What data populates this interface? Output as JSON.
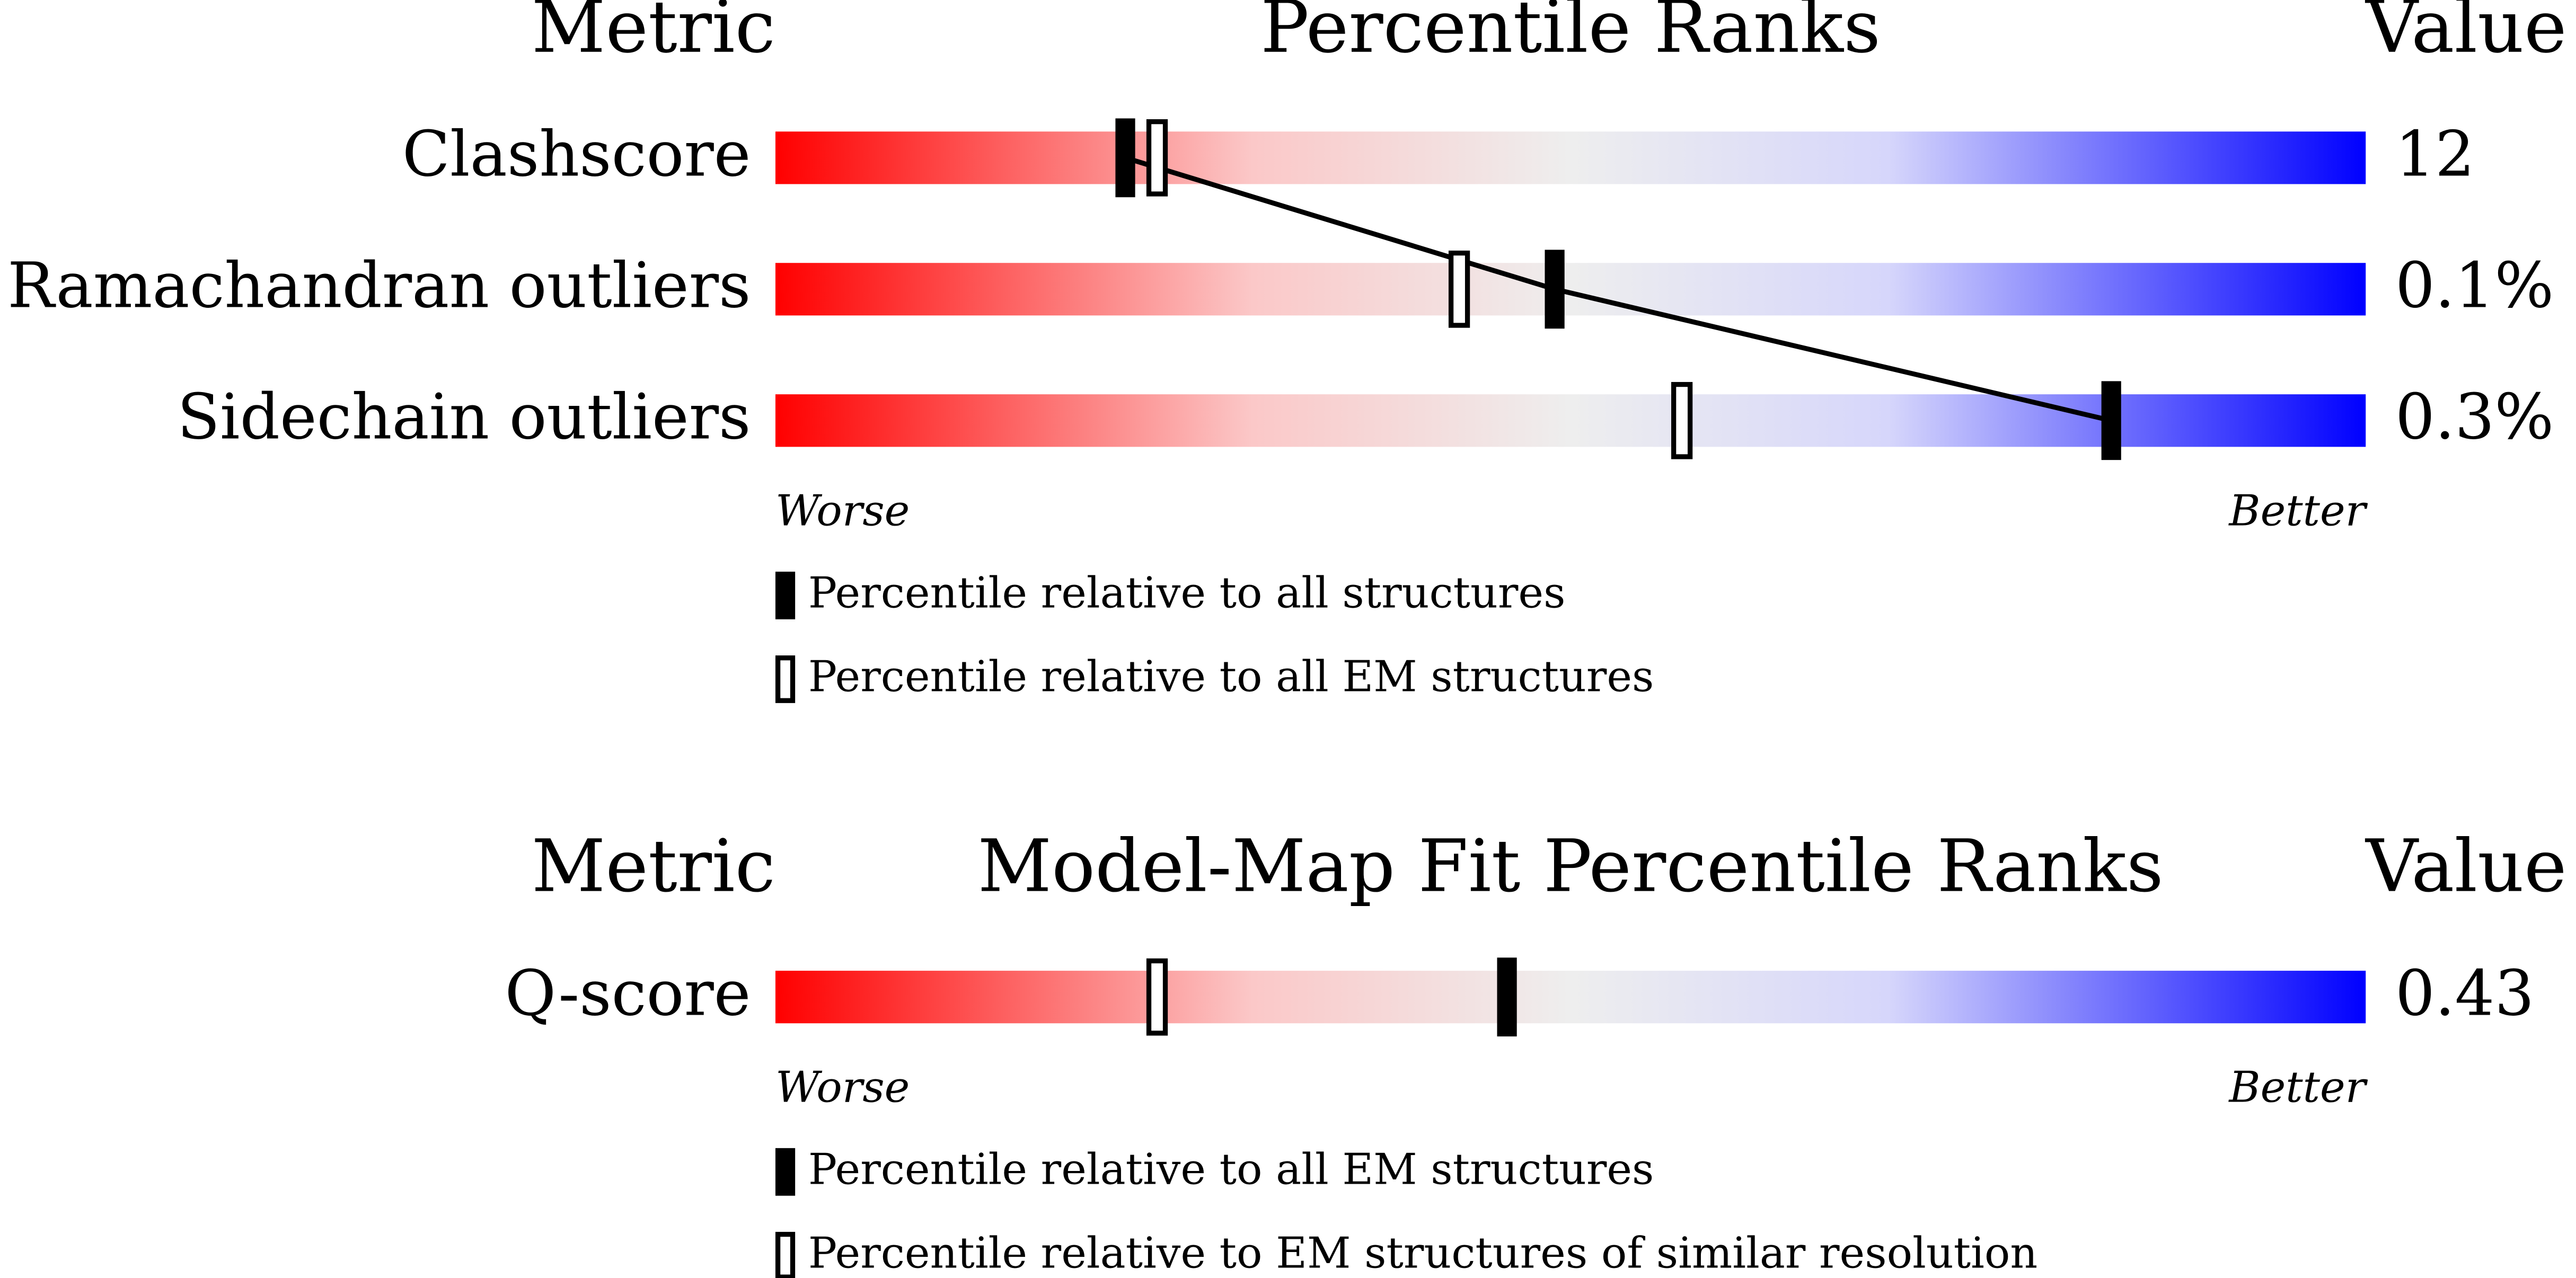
{
  "panels": [
    {
      "header": {
        "metric": "Metric",
        "title": "Percentile Ranks",
        "value": "Value"
      },
      "xlim": [
        0,
        100
      ],
      "rows": [
        {
          "metric": "Clashscore",
          "percentile_all": 22,
          "percentile_em": 24,
          "value": "12"
        },
        {
          "metric": "Ramachandran outliers",
          "percentile_all": 49,
          "percentile_em": 43,
          "value": "0.1%"
        },
        {
          "metric": "Sidechain outliers",
          "percentile_all": 84,
          "percentile_em": 57,
          "value": "0.3%"
        }
      ],
      "worse": "Worse",
      "better": "Better",
      "legend": {
        "filled": "Percentile relative to all structures",
        "open": "Percentile relative to all EM structures"
      }
    },
    {
      "header": {
        "metric": "Metric",
        "title": "Model-Map Fit Percentile Ranks",
        "value": "Value"
      },
      "xlim": [
        0,
        100
      ],
      "rows": [
        {
          "metric": "Q-score",
          "percentile_all": 46,
          "percentile_em": 24,
          "value": "0.43"
        }
      ],
      "worse": "Worse",
      "better": "Better",
      "legend": {
        "filled": "Percentile relative to all EM structures",
        "open": "Percentile relative to EM structures of similar resolution"
      }
    }
  ]
}
